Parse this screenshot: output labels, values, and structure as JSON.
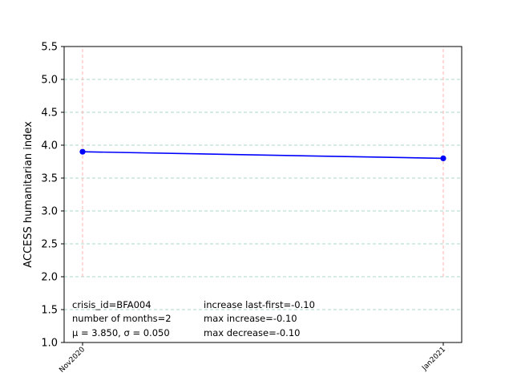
{
  "chart_data": {
    "type": "line",
    "title": "",
    "xlabel": "",
    "ylabel": "ACCESS humanitarian index",
    "categories": [
      "Nov2020",
      "Jan2021"
    ],
    "series": [
      {
        "values": [
          3.9,
          3.8
        ],
        "color": "#0000ff",
        "marker": "circle"
      }
    ],
    "ylim": [
      1.0,
      5.5
    ],
    "yticks": [
      "1.0",
      "1.5",
      "2.0",
      "2.5",
      "3.0",
      "3.5",
      "4.0",
      "4.5",
      "5.0",
      "5.5"
    ],
    "grid": {
      "horizontal": true,
      "horizontal_color": "#a8d8c8",
      "horizontal_style": "dashed",
      "vertical_color": "#ffb0b0",
      "vertical_style": "dashed",
      "vertical_range": [
        2.0,
        5.5
      ]
    },
    "annotations": {
      "left": [
        "crisis_id=BFA004",
        "number of months=2",
        "μ = 3.850,  σ = 0.050"
      ],
      "right": [
        "increase last-first=-0.10",
        "max increase=-0.10",
        "max decrease=-0.10"
      ]
    }
  }
}
